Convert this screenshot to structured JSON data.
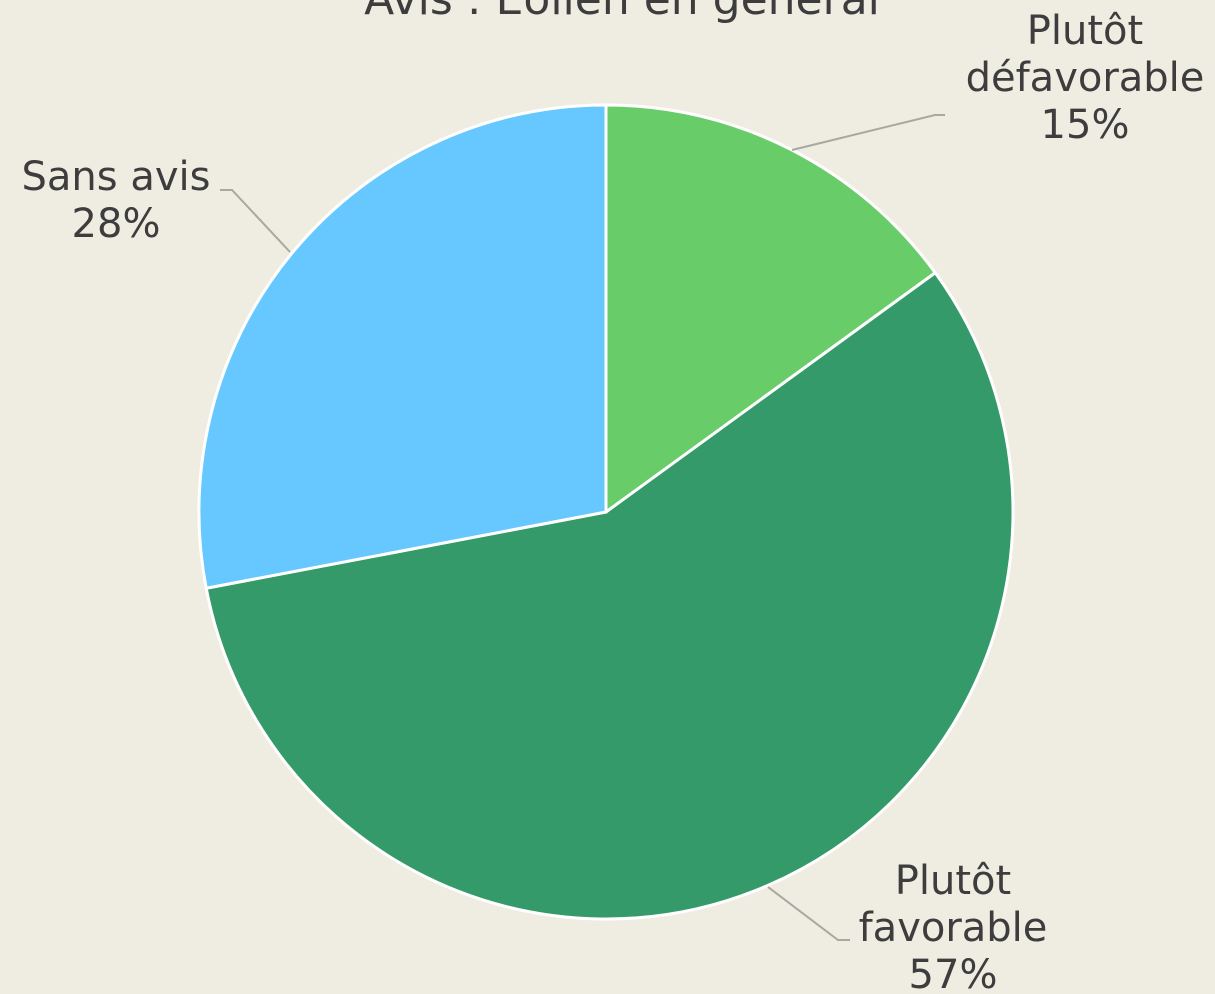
{
  "chart_data": {
    "type": "pie",
    "title": "Avis : Eolien en général",
    "categories": [
      "Plutôt défavorable",
      "Plutôt favorable",
      "Sans avis"
    ],
    "values": [
      15,
      57,
      28
    ],
    "value_labels": [
      "15%",
      "57%",
      "28%"
    ],
    "colors": [
      "#68cc68",
      "#359a6a",
      "#66c8ff"
    ]
  }
}
